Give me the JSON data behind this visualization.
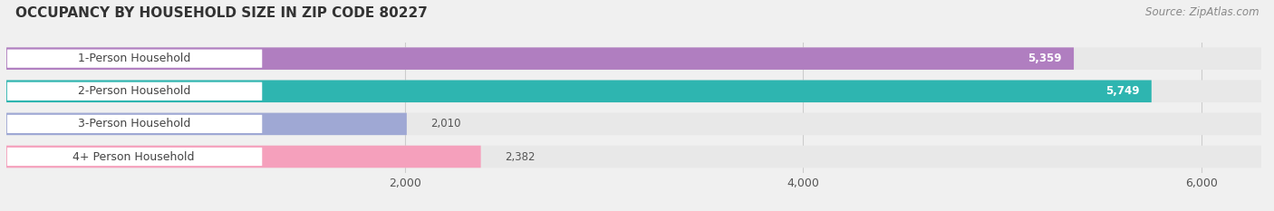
{
  "title": "OCCUPANCY BY HOUSEHOLD SIZE IN ZIP CODE 80227",
  "source_text": "Source: ZipAtlas.com",
  "categories": [
    "1-Person Household",
    "2-Person Household",
    "3-Person Household",
    "4+ Person Household"
  ],
  "values": [
    5359,
    5749,
    2010,
    2382
  ],
  "bar_colors": [
    "#b07ec0",
    "#2eb5b0",
    "#9fa8d4",
    "#f5a0bc"
  ],
  "label_text_color": "#444444",
  "value_color_inside": "#ffffff",
  "value_color_outside": "#555555",
  "xlim": [
    0,
    6300
  ],
  "xticks": [
    2000,
    4000,
    6000
  ],
  "xtick_labels": [
    "2,000",
    "4,000",
    "6,000"
  ],
  "background_color": "#f0f0f0",
  "bar_bg_color": "#e8e8e8",
  "bar_row_bg": "#ebebeb",
  "title_fontsize": 11,
  "source_fontsize": 8.5,
  "label_fontsize": 9,
  "value_fontsize": 8.5,
  "bar_height": 0.68,
  "figsize": [
    14.06,
    2.33
  ],
  "dpi": 100
}
